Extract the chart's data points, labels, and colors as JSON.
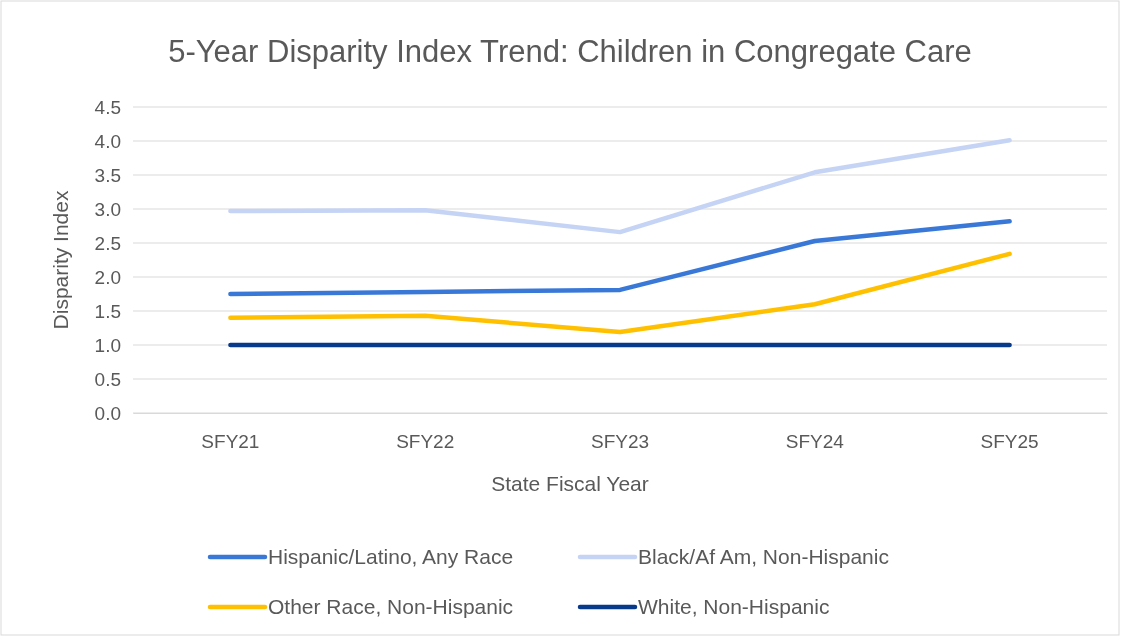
{
  "chart_data": {
    "type": "line",
    "title": "5-Year Disparity Index Trend: Children in Congregate Care",
    "xlabel": "State Fiscal Year",
    "ylabel": "Disparity Index",
    "categories": [
      "SFY21",
      "SFY22",
      "SFY23",
      "SFY24",
      "SFY25"
    ],
    "series": [
      {
        "name": "Hispanic/Latino, Any Race",
        "color": "#3a78d8",
        "values": [
          1.75,
          1.78,
          1.81,
          2.53,
          2.82
        ]
      },
      {
        "name": "Black/Af Am, Non-Hispanic",
        "color": "#c5d3f5",
        "values": [
          2.97,
          2.98,
          2.66,
          3.54,
          4.01
        ]
      },
      {
        "name": "Other Race, Non-Hispanic",
        "color": "#ffc000",
        "values": [
          1.4,
          1.43,
          1.19,
          1.6,
          2.34
        ]
      },
      {
        "name": "White, Non-Hispanic",
        "color": "#083a8c",
        "values": [
          1.0,
          1.0,
          1.0,
          1.0,
          1.0
        ]
      }
    ],
    "ylim": [
      0,
      4.5
    ],
    "yticks": [
      {
        "value": 0,
        "label": "0.0"
      },
      {
        "value": 0.5,
        "label": "0.5"
      },
      {
        "value": 1,
        "label": "1.0"
      },
      {
        "value": 1.5,
        "label": "1.5"
      },
      {
        "value": 2,
        "label": "2.0"
      },
      {
        "value": 2.5,
        "label": "2.5"
      },
      {
        "value": 3,
        "label": "3.0"
      },
      {
        "value": 3.5,
        "label": "3.5"
      },
      {
        "value": 4,
        "label": "4.0"
      },
      {
        "value": 4.5,
        "label": "4.5"
      }
    ],
    "grid": "y",
    "legend": "bottom",
    "marker": "none",
    "line_style": "solid"
  }
}
